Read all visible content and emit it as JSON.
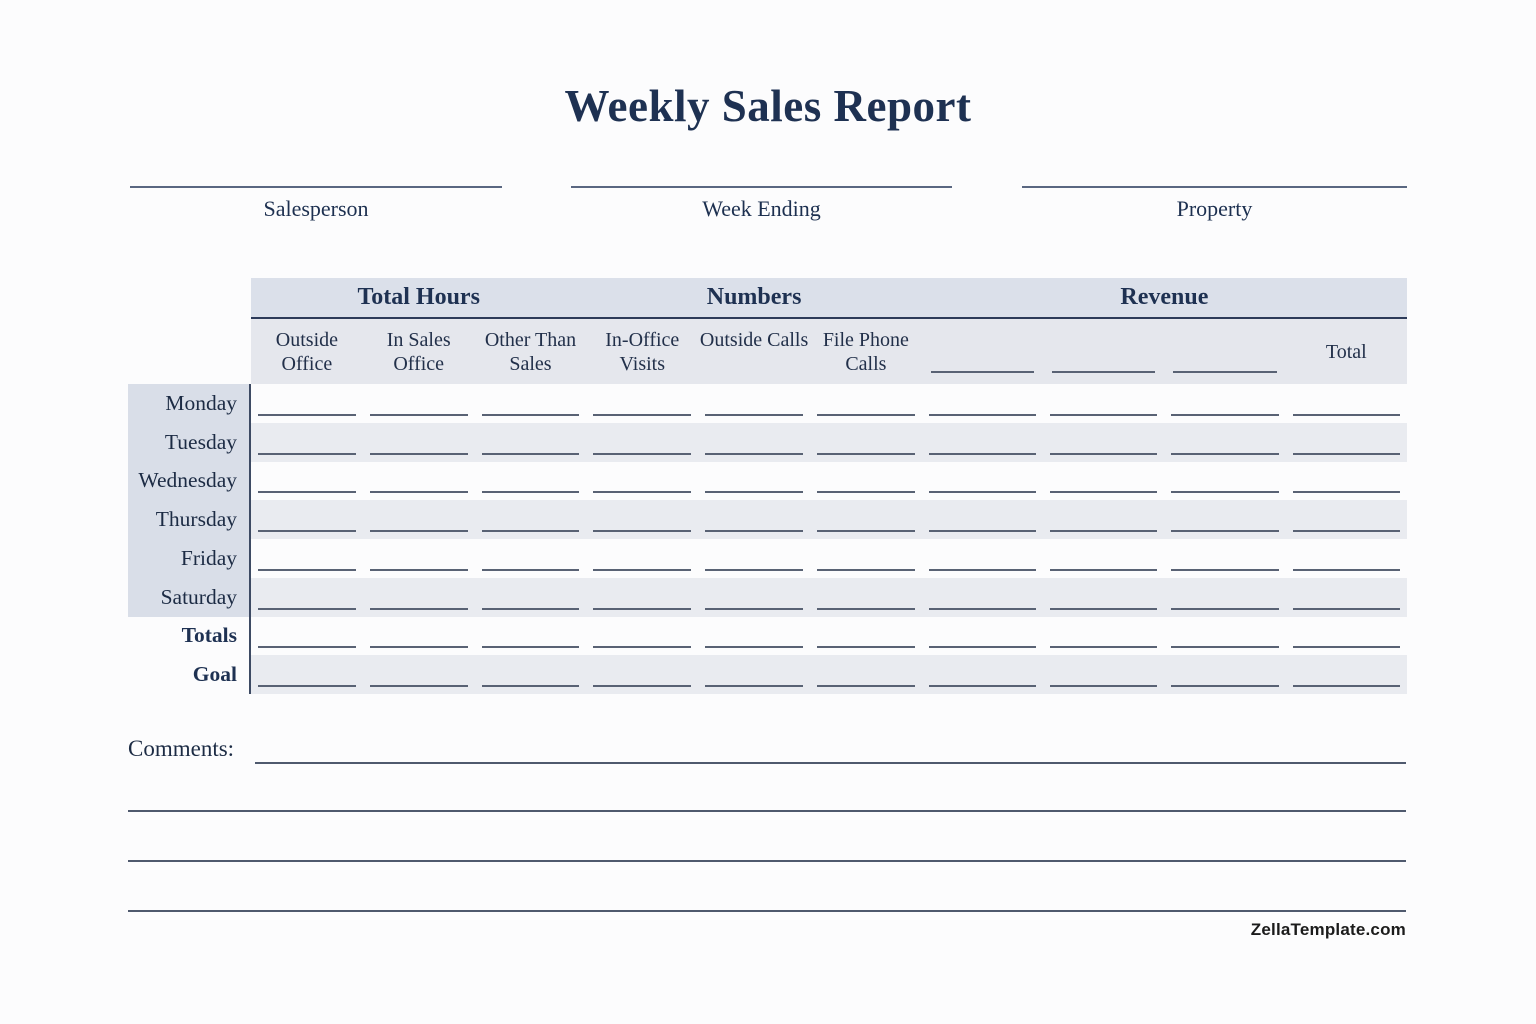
{
  "title": "Weekly Sales Report",
  "signature_fields": [
    {
      "label": "Salesperson"
    },
    {
      "label": "Week Ending"
    },
    {
      "label": "Property"
    }
  ],
  "table": {
    "groups": [
      {
        "label": "Total Hours",
        "span": 3
      },
      {
        "label": "Numbers",
        "span": 3
      },
      {
        "label": "Revenue",
        "span": 4
      }
    ],
    "columns": [
      {
        "label": "Outside Office",
        "blank_line": false
      },
      {
        "label": "In Sales Office",
        "blank_line": false
      },
      {
        "label": "Other Than Sales",
        "blank_line": false
      },
      {
        "label": "In-Office Visits",
        "blank_line": false
      },
      {
        "label": "Outside Calls",
        "blank_line": false
      },
      {
        "label": "File Phone Calls",
        "blank_line": false
      },
      {
        "label": "",
        "blank_line": true
      },
      {
        "label": "",
        "blank_line": true
      },
      {
        "label": "",
        "blank_line": true
      },
      {
        "label": "Total",
        "blank_line": false
      }
    ],
    "day_rows": [
      "Monday",
      "Tuesday",
      "Wednesday",
      "Thursday",
      "Friday",
      "Saturday"
    ],
    "summary_rows": [
      "Totals",
      "Goal"
    ],
    "cell_values": []
  },
  "comments": {
    "label": "Comments:",
    "extra_line_tops": [
      810,
      860,
      910
    ]
  },
  "footer": {
    "brand": "ZellaTemplate.com"
  },
  "colors": {
    "accent_navy": "#1e3152",
    "group_header_bg": "#dbe0ea",
    "subheader_bg": "#e5e7ed",
    "day_label_bg": "#d9dee8",
    "alt_row_bg": "#e9ebf0",
    "rule_line": "#596274"
  }
}
